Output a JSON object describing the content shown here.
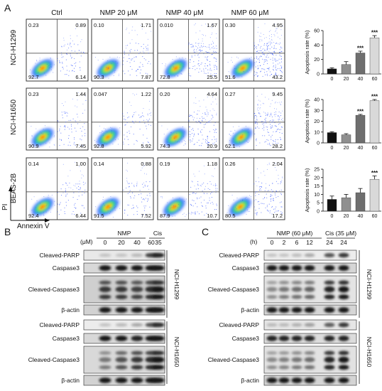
{
  "panel_labels": [
    "A",
    "B",
    "C"
  ],
  "panel_a": {
    "conditions": [
      "Ctrl",
      "NMP 20 μM",
      "NMP 40 μM",
      "NMP 60 μM"
    ],
    "cell_lines": [
      "NCI-H1299",
      "NCI-H1650",
      "BEAS-2B"
    ],
    "x_axis_label": "Annexin V",
    "y_axis_label": "PI",
    "quadrants": [
      [
        {
          "ul": "0.23",
          "ur": "0.89",
          "ll": "92.7",
          "lr": "6.14"
        },
        {
          "ul": "0.10",
          "ur": "1.71",
          "ll": "90.3",
          "lr": "7.87"
        },
        {
          "ul": "0.010",
          "ur": "1.67",
          "ll": "72.8",
          "lr": "25.5"
        },
        {
          "ul": "0.30",
          "ur": "4.95",
          "ll": "51.6",
          "lr": "43.2"
        }
      ],
      [
        {
          "ul": "0.23",
          "ur": "1.44",
          "ll": "90.9",
          "lr": "7.45"
        },
        {
          "ul": "0.047",
          "ur": "1.22",
          "ll": "92.8",
          "lr": "5.92"
        },
        {
          "ul": "0.20",
          "ur": "4.64",
          "ll": "74.3",
          "lr": "20.9"
        },
        {
          "ul": "0.27",
          "ur": "9.45",
          "ll": "62.1",
          "lr": "28.2"
        }
      ],
      [
        {
          "ul": "0.14",
          "ur": "1.00",
          "ll": "92.4",
          "lr": "6.44"
        },
        {
          "ul": "0.14",
          "ur": "0.88",
          "ll": "91.5",
          "lr": "7.52"
        },
        {
          "ul": "0.19",
          "ur": "1.18",
          "ll": "87.9",
          "lr": "10.7"
        },
        {
          "ul": "0.26",
          "ur": "2.04",
          "ll": "80.5",
          "lr": "17.2"
        }
      ]
    ]
  },
  "chart_data": [
    {
      "type": "bar",
      "categories": [
        "0",
        "20",
        "40",
        "60"
      ],
      "values": [
        7,
        13,
        29,
        50
      ],
      "errors": [
        1.5,
        4,
        2.5,
        3
      ],
      "significance": [
        "",
        "",
        "***",
        "***"
      ],
      "ylabel": "Apoptosis rate (%)",
      "ylim": [
        0,
        60
      ],
      "yticks": [
        "0",
        "20",
        "40",
        "60"
      ],
      "colors": [
        "#111111",
        "#8f8f8f",
        "#6e6e6e",
        "#d9d9d9"
      ]
    },
    {
      "type": "bar",
      "categories": [
        "0",
        "20",
        "40",
        "60"
      ],
      "values": [
        9.5,
        7.5,
        25.5,
        39
      ],
      "errors": [
        0.8,
        1,
        0.8,
        1
      ],
      "significance": [
        "",
        "",
        "***",
        "***"
      ],
      "ylabel": "Apoptosis rate (%)",
      "ylim": [
        0,
        40
      ],
      "yticks": [
        "0",
        "10",
        "20",
        "30",
        "40"
      ],
      "colors": [
        "#111111",
        "#8f8f8f",
        "#6e6e6e",
        "#d9d9d9"
      ]
    },
    {
      "type": "bar",
      "categories": [
        "0",
        "20",
        "40",
        "60"
      ],
      "values": [
        7,
        8,
        11,
        19
      ],
      "errors": [
        2,
        2,
        2.5,
        2
      ],
      "significance": [
        "",
        "",
        "",
        "***"
      ],
      "ylabel": "Apoptosis rate (%)",
      "ylim": [
        0,
        25
      ],
      "yticks": [
        "0",
        "5",
        "10",
        "15",
        "20",
        "25"
      ],
      "colors": [
        "#111111",
        "#8f8f8f",
        "#6e6e6e",
        "#d9d9d9"
      ]
    }
  ],
  "panel_b": {
    "unit": "(μM)",
    "group_nmp": "NMP",
    "group_cis": "Cis",
    "lanes": [
      "0",
      "20",
      "40",
      "60",
      "35"
    ],
    "blot_labels_top": [
      "Cleaved-PARP",
      "Caspase3",
      "Cleaved-Caspase3",
      "β-actin"
    ],
    "blot_labels_bottom": [
      "Cleaved-PARP",
      "Caspase3",
      "Cleaved-Caspase3",
      "β-actin"
    ],
    "cell_top": "NCI-H1299",
    "cell_bottom": "NCI-H1650"
  },
  "panel_c": {
    "unit": "(h)",
    "group_nmp": "NMP (60 μM)",
    "group_cis": "Cis (35 μM)",
    "lanes": [
      "0",
      "2",
      "6",
      "12",
      "24",
      "24"
    ],
    "blot_labels_top": [
      "Cleaved-PARP",
      "Caspase3",
      "Cleaved-Caspase3",
      "β-actin"
    ],
    "blot_labels_bottom": [
      "Cleaved-PARP",
      "Caspase3",
      "Cleaved-Caspase3",
      "β-actin"
    ],
    "cell_top": "NCI-H1299",
    "cell_bottom": "NCI-H1650"
  }
}
